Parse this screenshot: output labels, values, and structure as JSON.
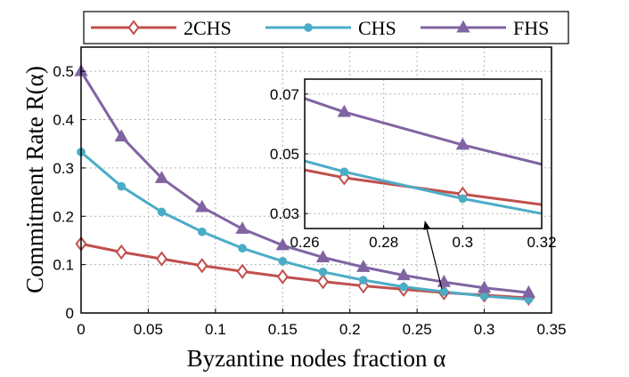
{
  "chart_data": {
    "type": "line",
    "title": "",
    "xlabel": "Byzantine nodes fraction α",
    "ylabel": "Commitment Rate R(α)",
    "xlim": [
      0,
      0.35
    ],
    "ylim": [
      0,
      0.55
    ],
    "x_ticks": [
      "0",
      "0.05",
      "0.1",
      "0.15",
      "0.2",
      "0.25",
      "0.3",
      "0.35"
    ],
    "y_ticks": [
      "0",
      "0.1",
      "0.2",
      "0.3",
      "0.4",
      "0.5"
    ],
    "grid": true,
    "legend_position": "top",
    "x": [
      0,
      0.03,
      0.06,
      0.09,
      0.12,
      0.15,
      0.18,
      0.21,
      0.24,
      0.27,
      0.3,
      0.333
    ],
    "series": [
      {
        "name": "2CHS",
        "color": "#c0504d",
        "marker": "diamond",
        "values": [
          0.143,
          0.126,
          0.112,
          0.098,
          0.086,
          0.075,
          0.065,
          0.056,
          0.049,
          0.042,
          0.037,
          0.031
        ]
      },
      {
        "name": "CHS",
        "color": "#4bacc6",
        "marker": "circle",
        "values": [
          0.333,
          0.262,
          0.209,
          0.168,
          0.134,
          0.107,
          0.085,
          0.068,
          0.054,
          0.044,
          0.035,
          0.028
        ]
      },
      {
        "name": "FHS",
        "color": "#8064a2",
        "marker": "triangle",
        "values": [
          0.5,
          0.365,
          0.279,
          0.219,
          0.174,
          0.14,
          0.115,
          0.095,
          0.078,
          0.064,
          0.052,
          0.042
        ]
      }
    ],
    "inset": {
      "xlim": [
        0.26,
        0.32
      ],
      "ylim": [
        0.025,
        0.075
      ],
      "x_ticks": [
        "0.26",
        "0.28",
        "0.3",
        "0.32"
      ],
      "y_ticks": [
        "0.03",
        "0.05",
        "0.07"
      ],
      "series": [
        {
          "name": "2CHS",
          "x": [
            0.26,
            0.27,
            0.3,
            0.32
          ],
          "values": [
            0.0446,
            0.042,
            0.0365,
            0.033
          ]
        },
        {
          "name": "CHS",
          "x": [
            0.26,
            0.27,
            0.3,
            0.32
          ],
          "values": [
            0.0476,
            0.044,
            0.035,
            0.03
          ]
        },
        {
          "name": "FHS",
          "x": [
            0.26,
            0.27,
            0.3,
            0.32
          ],
          "values": [
            0.0685,
            0.064,
            0.053,
            0.0465
          ]
        }
      ]
    }
  }
}
